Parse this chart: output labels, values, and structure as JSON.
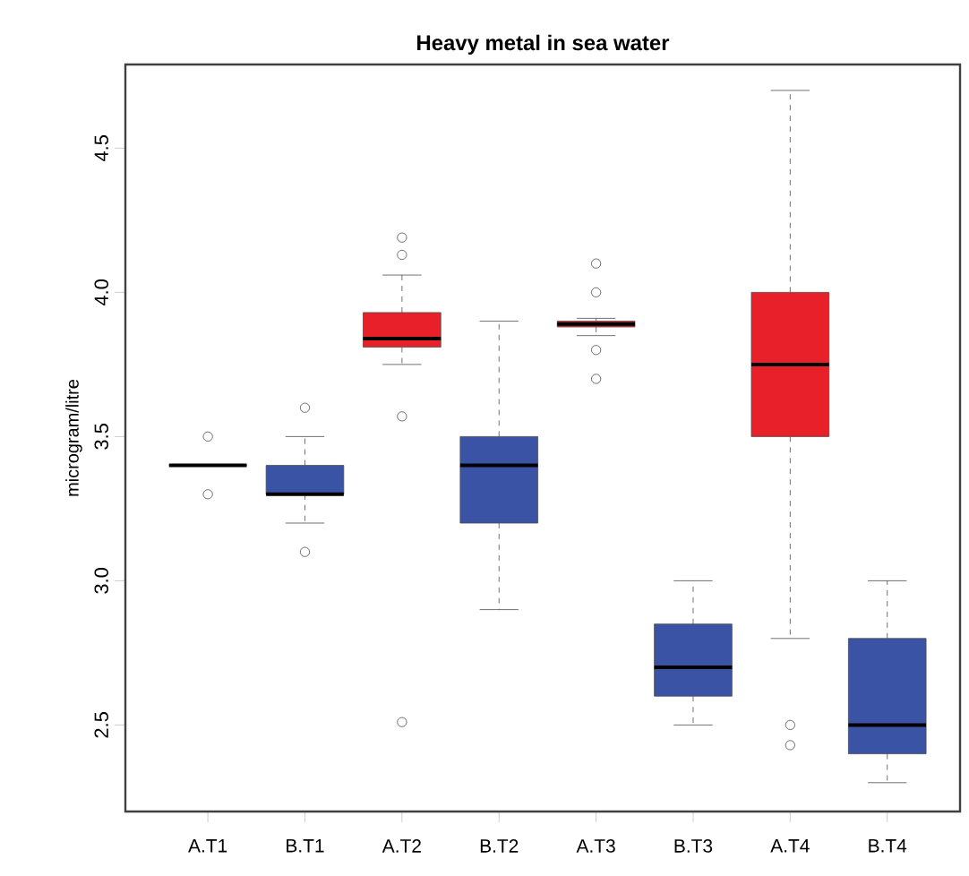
{
  "chart_data": {
    "type": "box",
    "title": "Heavy metal in sea water",
    "ylabel": "microgram/litre",
    "categories": [
      "A.T1",
      "B.T1",
      "A.T2",
      "B.T2",
      "A.T3",
      "B.T3",
      "A.T4",
      "B.T4"
    ],
    "colors": [
      "#e8202a",
      "#3a53a4",
      "#e8202a",
      "#3a53a4",
      "#e8202a",
      "#3a53a4",
      "#e8202a",
      "#3a53a4"
    ],
    "boxes": [
      {
        "low": 3.4,
        "q1": 3.4,
        "median": 3.4,
        "q3": 3.4,
        "high": 3.4,
        "outliers": [
          3.5,
          3.3
        ]
      },
      {
        "low": 3.2,
        "q1": 3.3,
        "median": 3.3,
        "q3": 3.4,
        "high": 3.5,
        "outliers": [
          3.6,
          3.1
        ]
      },
      {
        "low": 3.75,
        "q1": 3.81,
        "median": 3.84,
        "q3": 3.93,
        "high": 4.06,
        "outliers": [
          4.19,
          4.13,
          3.57,
          2.51
        ]
      },
      {
        "low": 2.9,
        "q1": 3.2,
        "median": 3.4,
        "q3": 3.5,
        "high": 3.9
      },
      {
        "low": 3.85,
        "q1": 3.88,
        "median": 3.89,
        "q3": 3.9,
        "high": 3.91,
        "outliers": [
          4.1,
          4.0,
          3.8,
          3.7
        ]
      },
      {
        "low": 2.5,
        "q1": 2.6,
        "median": 2.7,
        "q3": 2.85,
        "high": 3.0
      },
      {
        "low": 2.8,
        "q1": 3.5,
        "median": 3.75,
        "q3": 4.0,
        "high": 4.7,
        "outliers": [
          2.5,
          2.43
        ]
      },
      {
        "low": 2.3,
        "q1": 2.4,
        "median": 2.5,
        "q3": 2.8,
        "high": 3.0
      }
    ],
    "ylim": [
      2.2,
      4.79
    ],
    "yticks": [
      2.5,
      {
        "value": 3,
        "label": "3.0"
      },
      3.5,
      {
        "value": 4,
        "label": "4.0"
      },
      4.5
    ],
    "marker": "circle"
  }
}
